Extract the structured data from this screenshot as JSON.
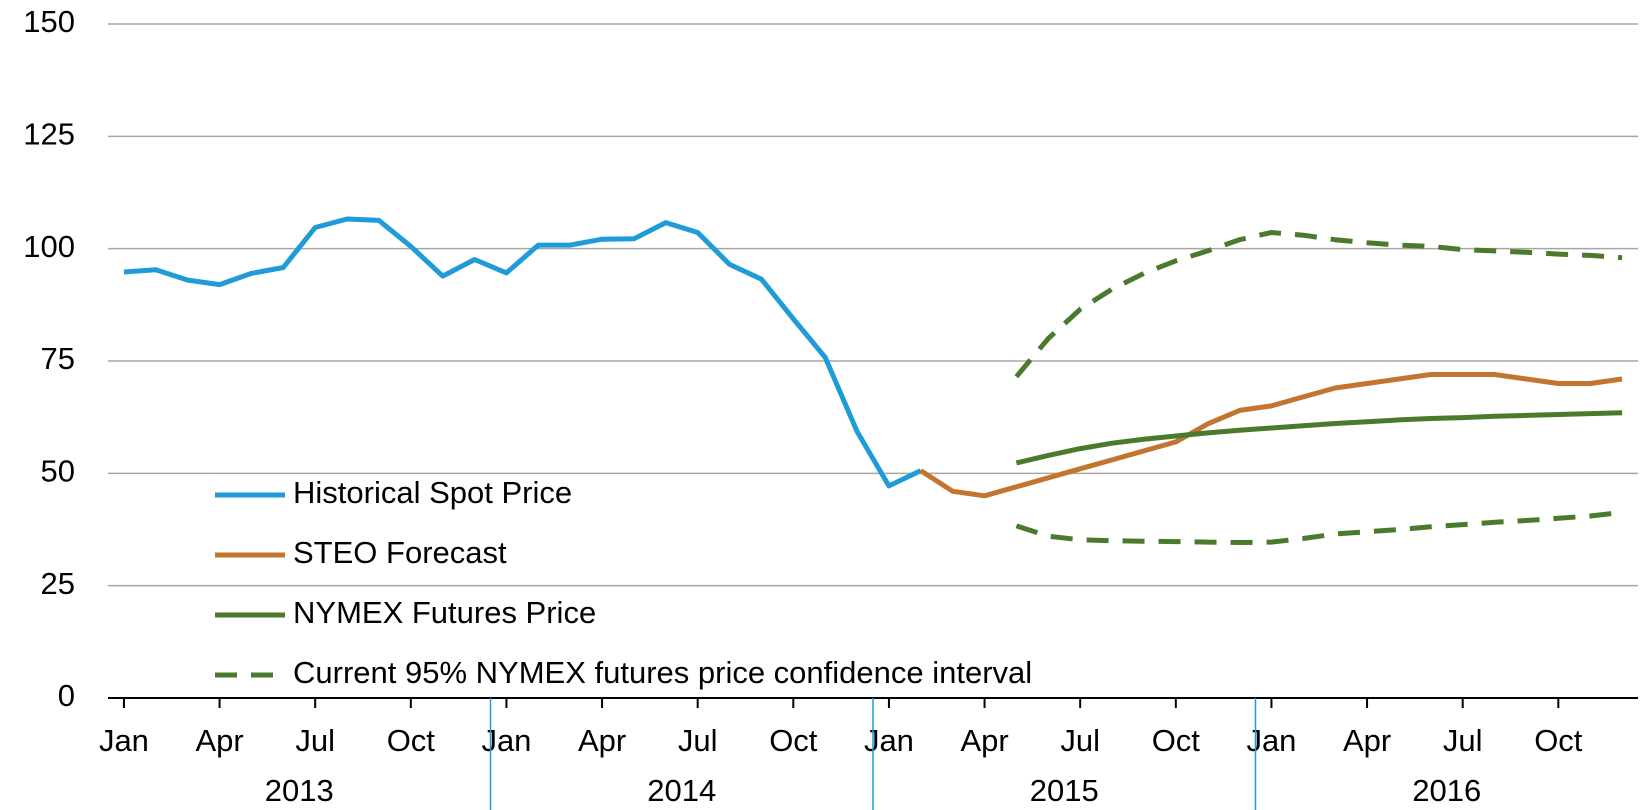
{
  "chart_data": {
    "type": "line",
    "categories": [
      "Jan",
      null,
      null,
      "Apr",
      null,
      null,
      "Jul",
      null,
      null,
      "Oct",
      null,
      null,
      "Jan",
      null,
      null,
      "Apr",
      null,
      null,
      "Jul",
      null,
      null,
      "Oct",
      null,
      null,
      "Jan",
      null,
      null,
      "Apr",
      null,
      null,
      "Jul",
      null,
      null,
      "Oct",
      null,
      null,
      "Jan",
      null,
      null,
      "Apr",
      null,
      null,
      "Jul",
      null,
      null,
      "Oct",
      null,
      null
    ],
    "x_groups": [
      "2013",
      "2014",
      "2015",
      "2016"
    ],
    "ylim": [
      0,
      150
    ],
    "yticks": [
      0,
      25,
      50,
      75,
      100,
      125,
      150
    ],
    "grid": true,
    "legend": "lower left",
    "series": [
      {
        "name": "Historical Spot Price",
        "color": "#1f9bd7",
        "values": [
          94.8,
          95.3,
          93,
          92,
          94.5,
          95.8,
          104.7,
          106.6,
          106.3,
          100.5,
          93.9,
          97.6,
          94.6,
          100.8,
          100.8,
          102.1,
          102.2,
          105.8,
          103.6,
          96.5,
          93.2,
          84.4,
          75.8,
          59.3,
          47.2,
          50.6,
          null,
          null,
          null,
          null,
          null,
          null,
          null,
          null,
          null,
          null,
          null,
          null,
          null,
          null,
          null,
          null,
          null,
          null,
          null,
          null,
          null,
          null
        ]
      },
      {
        "name": "STEO Forecast",
        "color": "#c3742f",
        "values": [
          null,
          null,
          null,
          null,
          null,
          null,
          null,
          null,
          null,
          null,
          null,
          null,
          null,
          null,
          null,
          null,
          null,
          null,
          null,
          null,
          null,
          null,
          null,
          null,
          null,
          50.6,
          46,
          45,
          47,
          49,
          51,
          53,
          55,
          57,
          61,
          64,
          65,
          67,
          69,
          70,
          71,
          72,
          72,
          72,
          71,
          70,
          70,
          71
        ]
      },
      {
        "name": "NYMEX Futures Price",
        "color": "#4a7a2c",
        "values": [
          null,
          null,
          null,
          null,
          null,
          null,
          null,
          null,
          null,
          null,
          null,
          null,
          null,
          null,
          null,
          null,
          null,
          null,
          null,
          null,
          null,
          null,
          null,
          null,
          null,
          null,
          null,
          null,
          52.3,
          54,
          55.5,
          56.7,
          57.6,
          58.3,
          59,
          59.6,
          60.1,
          60.6,
          61.1,
          61.5,
          61.9,
          62.2,
          62.4,
          62.7,
          62.9,
          63.1,
          63.3,
          63.5
        ]
      },
      {
        "name": "Current 95% NYMEX futures price confidence interval",
        "color": "#4a7a2c",
        "dashed": true,
        "values": [
          null,
          null,
          null,
          null,
          null,
          null,
          null,
          null,
          null,
          null,
          null,
          null,
          null,
          null,
          null,
          null,
          null,
          null,
          null,
          null,
          null,
          null,
          null,
          null,
          null,
          null,
          null,
          null,
          71.5,
          80,
          86.5,
          91,
          94.5,
          97.3,
          99.5,
          102,
          103.6,
          103,
          102,
          101.3,
          100.8,
          100.5,
          99.8,
          99.5,
          99.2,
          98.8,
          98.5,
          98
        ],
        "lower": [
          null,
          null,
          null,
          null,
          null,
          null,
          null,
          null,
          null,
          null,
          null,
          null,
          null,
          null,
          null,
          null,
          null,
          null,
          null,
          null,
          null,
          null,
          null,
          null,
          null,
          null,
          null,
          null,
          38.3,
          36,
          35.2,
          35,
          34.9,
          34.8,
          34.7,
          34.6,
          34.7,
          35.5,
          36.5,
          37,
          37.5,
          38.1,
          38.6,
          39.1,
          39.5,
          40,
          40.5,
          41.3
        ]
      }
    ]
  }
}
